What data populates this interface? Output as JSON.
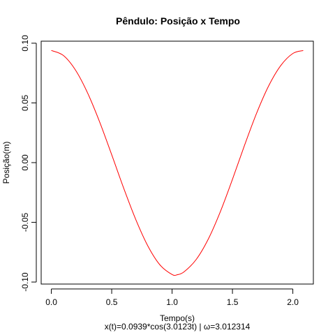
{
  "chart_data": {
    "type": "line",
    "title": "Pêndulo: Posição x Tempo",
    "xlabel": "Tempo(s)",
    "ylabel": "Posição(m)",
    "subtitle": "x(t)=0.0939*cos(3.0123t) | ω=3.012314",
    "xlim": [
      -0.084,
      2.17
    ],
    "ylim": [
      -0.1017,
      0.1017
    ],
    "x_ticks": [
      0.0,
      0.5,
      1.0,
      1.5,
      2.0
    ],
    "x_tick_labels": [
      "0.0",
      "0.5",
      "1.0",
      "1.5",
      "2.0"
    ],
    "y_ticks": [
      -0.1,
      -0.05,
      0.0,
      0.05,
      0.1
    ],
    "y_tick_labels": [
      "-0.10",
      "-0.05",
      "0.00",
      "0.05",
      "0.10"
    ],
    "grid": false,
    "series": [
      {
        "color": "#ff0000",
        "x": [
          0.0,
          0.1,
          0.2,
          0.3,
          0.4,
          0.5,
          0.6,
          0.7,
          0.8,
          0.9,
          1.0,
          1.043,
          1.1,
          1.2,
          1.3,
          1.4,
          1.5,
          1.6,
          1.7,
          1.8,
          1.9,
          2.0,
          2.086
        ],
        "y": [
          0.0939,
          0.0897,
          0.0775,
          0.0584,
          0.0341,
          0.0066,
          -0.0216,
          -0.0478,
          -0.0699,
          -0.0857,
          -0.0937,
          -0.0939,
          -0.0914,
          -0.0811,
          -0.064,
          -0.041,
          -0.014,
          0.0145,
          0.0414,
          0.0643,
          0.0813,
          0.0914,
          0.0939
        ]
      }
    ]
  }
}
